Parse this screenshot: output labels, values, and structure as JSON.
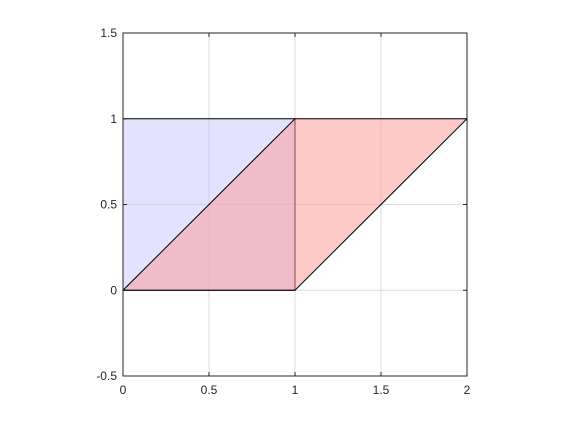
{
  "chart_data": {
    "type": "area",
    "title": "",
    "xlabel": "",
    "ylabel": "",
    "xlim": [
      0,
      2
    ],
    "ylim": [
      -0.5,
      1.5
    ],
    "grid": true,
    "aspect": "equal",
    "xticks": [
      0,
      0.5,
      1,
      1.5,
      2
    ],
    "xtick_labels": [
      "0",
      "0.5",
      "1",
      "1.5",
      "2"
    ],
    "yticks": [
      -0.5,
      0,
      0.5,
      1,
      1.5
    ],
    "ytick_labels": [
      "-0.5",
      "0",
      "0.5",
      "1",
      "1.5"
    ],
    "polygons": [
      {
        "fill": "#c8c8ff",
        "alpha": 0.5,
        "edge": "#000000",
        "vertices": [
          [
            0,
            0
          ],
          [
            1,
            0
          ],
          [
            1,
            1
          ],
          [
            0,
            1
          ]
        ]
      },
      {
        "fill": "#ff9696",
        "alpha": 0.5,
        "edge": "#000000",
        "vertices": [
          [
            0,
            0
          ],
          [
            1,
            0
          ],
          [
            2,
            1
          ],
          [
            1,
            1
          ]
        ]
      }
    ]
  }
}
